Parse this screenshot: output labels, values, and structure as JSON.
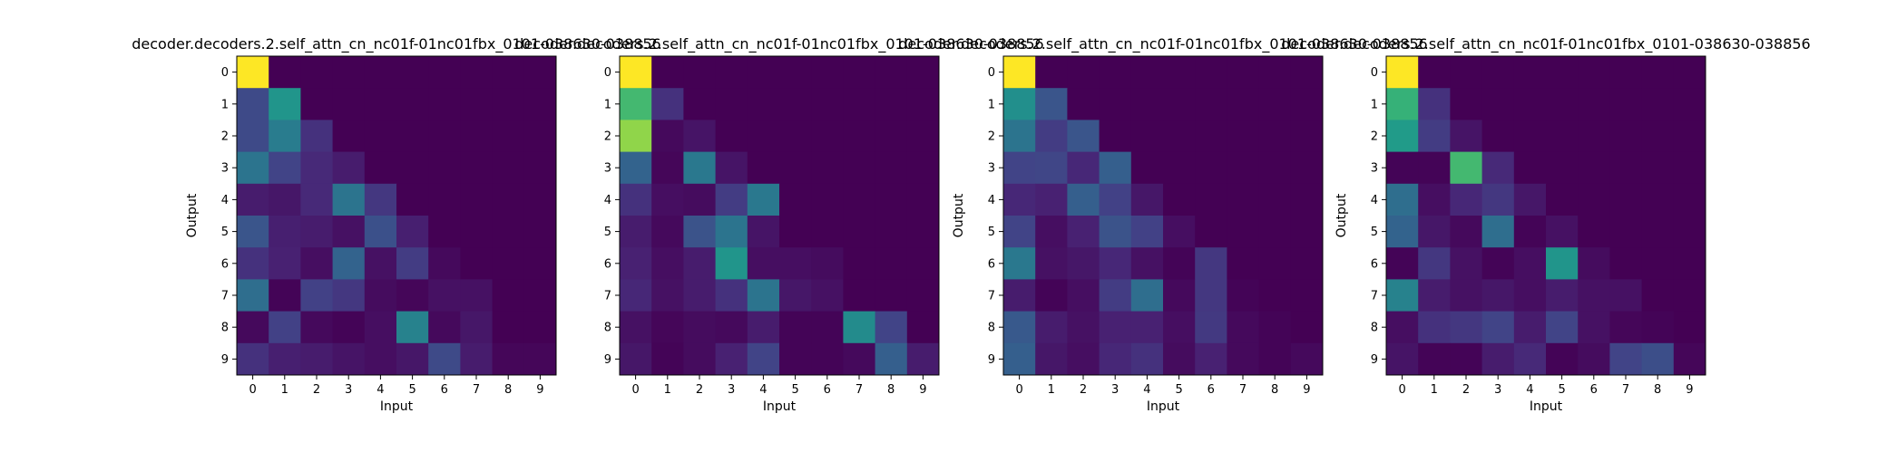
{
  "figure": {
    "background": "#ffffff"
  },
  "chart_data": [
    {
      "type": "heatmap",
      "title": "decoder.decoders.2.self_attn_cn_nc01f-01nc01fbx_0101-038630-038856",
      "xlabel": "Input",
      "ylabel": "Output",
      "x": [
        0,
        1,
        2,
        3,
        4,
        5,
        6,
        7,
        8,
        9
      ],
      "y": [
        0,
        1,
        2,
        3,
        4,
        5,
        6,
        7,
        8,
        9
      ],
      "colormap": "viridis",
      "values": [
        [
          1.0,
          0,
          0,
          0,
          0,
          0,
          0,
          0,
          0,
          0
        ],
        [
          0.28,
          0.65,
          0,
          0,
          0,
          0,
          0,
          0,
          0,
          0
        ],
        [
          0.28,
          0.52,
          0.18,
          0,
          0,
          0,
          0,
          0,
          0,
          0
        ],
        [
          0.48,
          0.25,
          0.15,
          0.1,
          0,
          0,
          0,
          0,
          0,
          0
        ],
        [
          0.1,
          0.08,
          0.15,
          0.48,
          0.2,
          0,
          0,
          0,
          0,
          0
        ],
        [
          0.33,
          0.11,
          0.1,
          0.06,
          0.31,
          0.11,
          0,
          0,
          0,
          0
        ],
        [
          0.18,
          0.12,
          0.05,
          0.4,
          0.06,
          0.22,
          0.03,
          0,
          0,
          0
        ],
        [
          0.45,
          0.01,
          0.24,
          0.2,
          0.04,
          0.02,
          0.06,
          0.06,
          0,
          0
        ],
        [
          0.03,
          0.24,
          0.03,
          0.01,
          0.05,
          0.55,
          0.03,
          0.08,
          0,
          0
        ],
        [
          0.18,
          0.11,
          0.1,
          0.07,
          0.05,
          0.08,
          0.28,
          0.1,
          0.02,
          0.02
        ]
      ]
    },
    {
      "type": "heatmap",
      "title": "decoder.decoders.2.self_attn_cn_nc01f-01nc01fbx_0101-038630-038856",
      "xlabel": "Input",
      "ylabel": "",
      "x": [
        0,
        1,
        2,
        3,
        4,
        5,
        6,
        7,
        8,
        9
      ],
      "y": [
        0,
        1,
        2,
        3,
        4,
        5,
        6,
        7,
        8,
        9
      ],
      "colormap": "viridis",
      "values": [
        [
          1.0,
          0,
          0,
          0,
          0,
          0,
          0,
          0,
          0,
          0
        ],
        [
          0.8,
          0.18,
          0,
          0,
          0,
          0,
          0,
          0,
          0,
          0
        ],
        [
          0.9,
          0.03,
          0.07,
          0,
          0,
          0,
          0,
          0,
          0,
          0
        ],
        [
          0.4,
          0.02,
          0.5,
          0.07,
          0,
          0,
          0,
          0,
          0,
          0
        ],
        [
          0.18,
          0.05,
          0.04,
          0.22,
          0.5,
          0,
          0,
          0,
          0,
          0
        ],
        [
          0.1,
          0.03,
          0.32,
          0.48,
          0.07,
          0,
          0,
          0,
          0,
          0
        ],
        [
          0.12,
          0.05,
          0.1,
          0.65,
          0.05,
          0.05,
          0.04,
          0,
          0,
          0
        ],
        [
          0.14,
          0.06,
          0.1,
          0.18,
          0.48,
          0.08,
          0.06,
          0,
          0,
          0
        ],
        [
          0.06,
          0.02,
          0.04,
          0.03,
          0.1,
          0.01,
          0.01,
          0.6,
          0.25,
          0
        ],
        [
          0.08,
          0.01,
          0.04,
          0.12,
          0.25,
          0.01,
          0.01,
          0.03,
          0.38,
          0.1
        ]
      ]
    },
    {
      "type": "heatmap",
      "title": "decoder.decoders.2.self_attn_cn_nc01f-01nc01fbx_0101-038630-038856",
      "xlabel": "Input",
      "ylabel": "Output",
      "x": [
        0,
        1,
        2,
        3,
        4,
        5,
        6,
        7,
        8,
        9
      ],
      "y": [
        0,
        1,
        2,
        3,
        4,
        5,
        6,
        7,
        8,
        9
      ],
      "colormap": "viridis",
      "values": [
        [
          1.0,
          0,
          0,
          0,
          0,
          0,
          0,
          0,
          0,
          0
        ],
        [
          0.62,
          0.33,
          0,
          0,
          0,
          0,
          0,
          0,
          0,
          0
        ],
        [
          0.48,
          0.22,
          0.33,
          0,
          0,
          0,
          0,
          0,
          0,
          0
        ],
        [
          0.25,
          0.26,
          0.14,
          0.38,
          0,
          0,
          0,
          0,
          0,
          0
        ],
        [
          0.14,
          0.12,
          0.38,
          0.24,
          0.08,
          0,
          0,
          0,
          0,
          0
        ],
        [
          0.25,
          0.05,
          0.12,
          0.32,
          0.24,
          0.05,
          0,
          0,
          0,
          0
        ],
        [
          0.5,
          0.06,
          0.08,
          0.14,
          0.06,
          0.01,
          0.2,
          0,
          0,
          0
        ],
        [
          0.1,
          0.01,
          0.05,
          0.22,
          0.45,
          0.03,
          0.2,
          0.01,
          0,
          0
        ],
        [
          0.35,
          0.1,
          0.06,
          0.12,
          0.12,
          0.05,
          0.21,
          0.03,
          0.01,
          0
        ],
        [
          0.38,
          0.08,
          0.05,
          0.14,
          0.18,
          0.04,
          0.12,
          0.03,
          0.01,
          0.03
        ]
      ]
    },
    {
      "type": "heatmap",
      "title": "decoder.decoders.2.self_attn_cn_nc01f-01nc01fbx_0101-038630-038856",
      "xlabel": "Input",
      "ylabel": "Output",
      "x": [
        0,
        1,
        2,
        3,
        4,
        5,
        6,
        7,
        8,
        9
      ],
      "y": [
        0,
        1,
        2,
        3,
        4,
        5,
        6,
        7,
        8,
        9
      ],
      "colormap": "viridis",
      "values": [
        [
          1.0,
          0,
          0,
          0,
          0,
          0,
          0,
          0,
          0,
          0
        ],
        [
          0.78,
          0.18,
          0,
          0,
          0,
          0,
          0,
          0,
          0,
          0
        ],
        [
          0.68,
          0.22,
          0.07,
          0,
          0,
          0,
          0,
          0,
          0,
          0
        ],
        [
          0.01,
          0.01,
          0.8,
          0.15,
          0,
          0,
          0,
          0,
          0,
          0
        ],
        [
          0.45,
          0.05,
          0.14,
          0.2,
          0.08,
          0,
          0,
          0,
          0,
          0
        ],
        [
          0.4,
          0.08,
          0.03,
          0.45,
          0.01,
          0.06,
          0,
          0,
          0,
          0
        ],
        [
          0.01,
          0.2,
          0.06,
          0.01,
          0.05,
          0.65,
          0.04,
          0,
          0,
          0
        ],
        [
          0.55,
          0.1,
          0.06,
          0.08,
          0.05,
          0.1,
          0.06,
          0.06,
          0,
          0
        ],
        [
          0.05,
          0.18,
          0.2,
          0.25,
          0.1,
          0.25,
          0.06,
          0.02,
          0.01,
          0
        ],
        [
          0.07,
          0.01,
          0.01,
          0.1,
          0.15,
          0.01,
          0.04,
          0.25,
          0.3,
          0.02
        ]
      ]
    }
  ]
}
